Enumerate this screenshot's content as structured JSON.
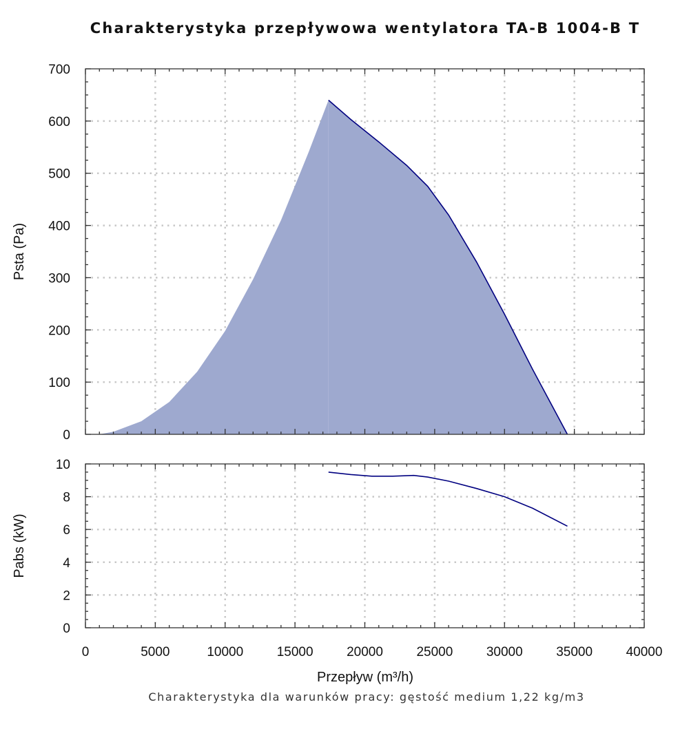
{
  "chart_data": {
    "type": "area",
    "title": "Charakterystyka przepływowa wentylatora TA-B 1004-B T",
    "xlabel": "Przepływ (m³/h)",
    "note": "Charakterystyka dla warunków pracy: gęstość medium 1,22 kg/m3",
    "xlim": [
      0,
      40000
    ],
    "x_ticks": [
      0,
      5000,
      10000,
      15000,
      20000,
      25000,
      30000,
      35000,
      40000
    ],
    "grid": true,
    "colors": {
      "line": "#000080",
      "fill": "#9ea9cf",
      "grid": "#c8c8c8"
    },
    "panels": [
      {
        "id": "pressure",
        "ylabel": "Psta (Pa)",
        "ylim": [
          0,
          700
        ],
        "y_ticks": [
          0,
          100,
          200,
          300,
          400,
          500,
          600,
          700
        ],
        "series": [
          {
            "name": "Psta",
            "style": "filled",
            "x": [
              1000,
              2000,
              4000,
              6000,
              8000,
              10000,
              12000,
              14000,
              16000,
              17400
            ],
            "values": [
              0,
              5,
              25,
              62,
              120,
              198,
              297,
              410,
              542,
              640
            ]
          },
          {
            "name": "Psta",
            "style": "line+fill",
            "x": [
              17400,
              19000,
              21000,
              23000,
              24500,
              26000,
              28000,
              30000,
              32000,
              34500
            ],
            "values": [
              640,
              603,
              560,
              515,
              475,
              420,
              330,
              230,
              125,
              0
            ]
          }
        ]
      },
      {
        "id": "power",
        "ylabel": "Pabs (kW)",
        "ylim": [
          0,
          10
        ],
        "y_ticks": [
          0,
          2,
          4,
          6,
          8,
          10
        ],
        "series": [
          {
            "name": "Pabs",
            "style": "line",
            "x": [
              17400,
              19000,
              20500,
              22000,
              23500,
              24500,
              26000,
              28000,
              30000,
              32000,
              34500
            ],
            "values": [
              9.5,
              9.35,
              9.25,
              9.25,
              9.3,
              9.2,
              8.95,
              8.5,
              8.0,
              7.3,
              6.2
            ]
          }
        ]
      }
    ]
  }
}
